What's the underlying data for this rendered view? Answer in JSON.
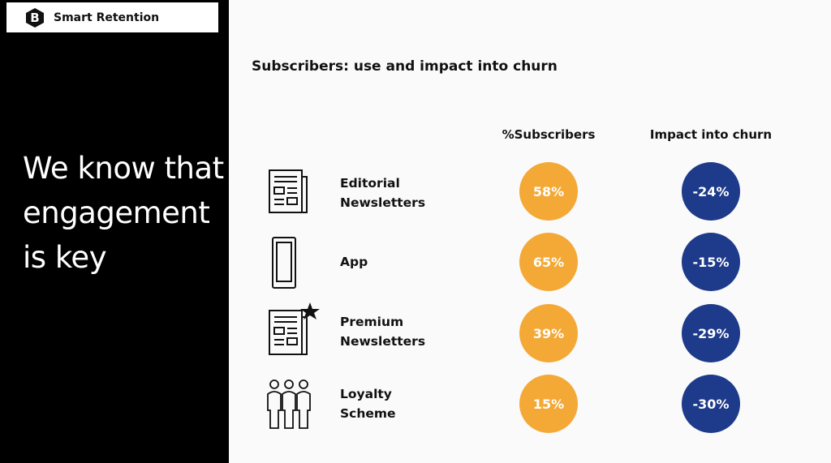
{
  "brand": {
    "logo_letter": "B",
    "name": "Smart Retention"
  },
  "headline": "We know that engagement is key",
  "slide": {
    "title": "Subscribers: use and impact into churn",
    "col_subscribers": "%Subscribers",
    "col_impact": "Impact into churn"
  },
  "rows": [
    {
      "icon": "newspaper-icon",
      "label_line1": "Editorial",
      "label_line2": "Newsletters",
      "subscribers": "58%",
      "impact": "-24%"
    },
    {
      "icon": "smartphone-icon",
      "label_line1": "App",
      "label_line2": "",
      "subscribers": "65%",
      "impact": "-15%"
    },
    {
      "icon": "premium-newspaper-icon",
      "label_line1": "Premium",
      "label_line2": "Newsletters",
      "subscribers": "39%",
      "impact": "-29%"
    },
    {
      "icon": "people-group-icon",
      "label_line1": "Loyalty",
      "label_line2": "Scheme",
      "subscribers": "15%",
      "impact": "-30%"
    }
  ],
  "colors": {
    "orange": "#f4a937",
    "blue": "#1e3a8a",
    "panel": "#000000"
  }
}
